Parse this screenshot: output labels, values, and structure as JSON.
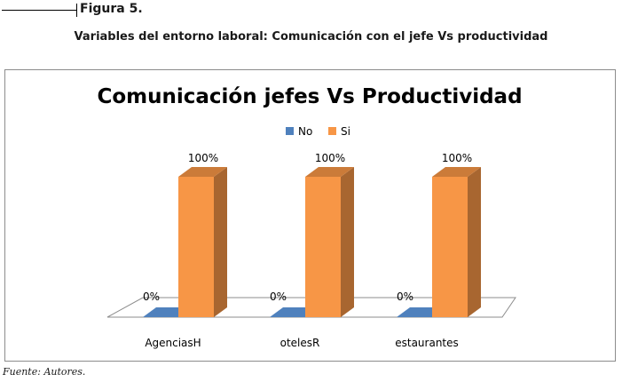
{
  "figure": {
    "label": "Figura 5.",
    "caption": "Variables del entorno laboral: Comunicación con el jefe Vs productividad",
    "source": "Fuente: Autores."
  },
  "chart_data": {
    "type": "bar",
    "title": "Comunicación jefes Vs Productividad",
    "categories": [
      "AgenciasH",
      "otelesR",
      "estaurantes"
    ],
    "series": [
      {
        "name": "No",
        "values": [
          0,
          0,
          0
        ],
        "labels": [
          "0%",
          "0%",
          "0%"
        ],
        "color": "#4F81BD"
      },
      {
        "name": "Si",
        "values": [
          100,
          100,
          100
        ],
        "labels": [
          "100%",
          "100%",
          "100%"
        ],
        "color": "#F79646"
      }
    ],
    "ylim": [
      0,
      100
    ],
    "grid": false,
    "legend": "top-center",
    "three_d": true
  }
}
